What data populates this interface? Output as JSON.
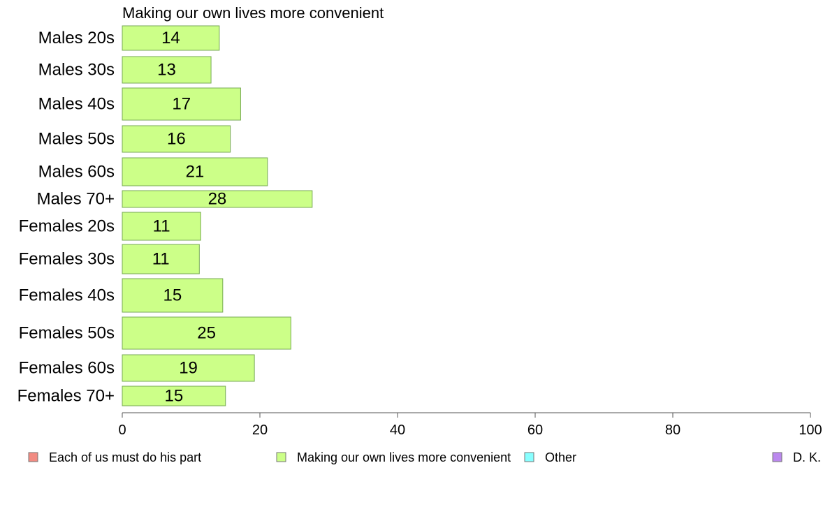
{
  "chart_data": {
    "type": "bar",
    "orientation": "horizontal",
    "title": "Making our own lives more convenient",
    "categories": [
      "Males 20s",
      "Males 30s",
      "Males 40s",
      "Males 50s",
      "Males 60s",
      "Males 70+",
      "Females 20s",
      "Females 30s",
      "Females 40s",
      "Females 50s",
      "Females 60s",
      "Females 70+"
    ],
    "series": [
      {
        "name": "Making our own lives more convenient",
        "values": [
          14,
          13,
          17,
          16,
          21,
          28,
          11,
          11,
          15,
          25,
          19,
          15
        ],
        "bar_values": [
          14.1,
          12.9,
          17.2,
          15.7,
          21.1,
          27.6,
          11.4,
          11.2,
          14.6,
          24.5,
          19.2,
          15.0
        ]
      }
    ],
    "xlim": [
      0,
      100
    ],
    "xticks": [
      0,
      20,
      40,
      60,
      80,
      100
    ],
    "grid": false,
    "legend_position": "bottom",
    "legend": [
      {
        "label": "Each of us must do his part",
        "color": "#f28b82"
      },
      {
        "label": "Making our own lives more convenient",
        "color": "#ccff88"
      },
      {
        "label": "Other",
        "color": "#88ffff"
      },
      {
        "label": "D. K.",
        "color": "#bb88ee"
      }
    ],
    "bar_color": "#ccff88",
    "bar_stroke": "#77aa55"
  }
}
